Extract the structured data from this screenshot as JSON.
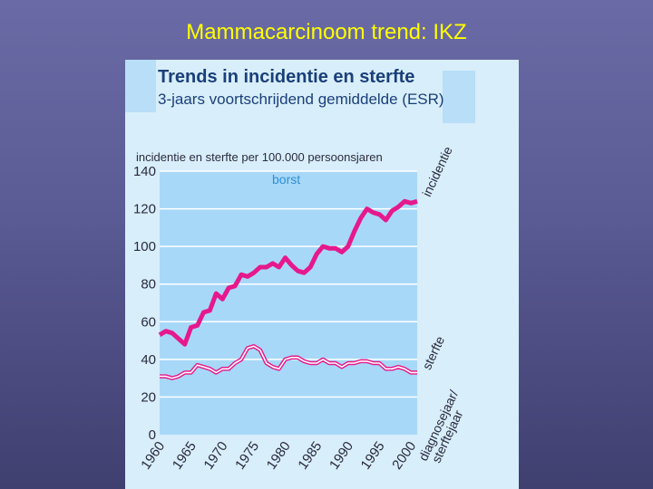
{
  "slide": {
    "title": "Mammacarcinoom trend: IKZ"
  },
  "chart_data": {
    "type": "line",
    "title": "Trends in incidentie en sterfte",
    "subtitle": "3-jaars voortschrijdend gemiddelde (ESR)",
    "ylabel": "incidentie en sterfte  per 100.000 persoonsjaren",
    "xlabel": "diagnosejaar/ sterftejaar",
    "panel_label": "borst",
    "ylim": [
      0,
      140
    ],
    "xlim": [
      1960,
      2001
    ],
    "yticks": [
      0,
      20,
      40,
      60,
      80,
      100,
      120,
      140
    ],
    "xticks": [
      1960,
      1965,
      1970,
      1975,
      1980,
      1985,
      1990,
      1995,
      2000
    ],
    "grid": true,
    "x": [
      1960,
      1961,
      1962,
      1963,
      1964,
      1965,
      1966,
      1967,
      1968,
      1969,
      1970,
      1971,
      1972,
      1973,
      1974,
      1975,
      1976,
      1977,
      1978,
      1979,
      1980,
      1981,
      1982,
      1983,
      1984,
      1985,
      1986,
      1987,
      1988,
      1989,
      1990,
      1991,
      1992,
      1993,
      1994,
      1995,
      1996,
      1997,
      1998,
      1999,
      2000,
      2001
    ],
    "series": [
      {
        "name": "incidentie",
        "color": "#e6198c",
        "style": "thick",
        "values": [
          53,
          55,
          54,
          51,
          48,
          57,
          58,
          65,
          66,
          75,
          72,
          78,
          79,
          85,
          84,
          86,
          89,
          89,
          91,
          89,
          94,
          90,
          87,
          86,
          89,
          96,
          100,
          99,
          99,
          97,
          100,
          108,
          115,
          120,
          118,
          117,
          114,
          119,
          121,
          124,
          123,
          124
        ]
      },
      {
        "name": "sterfte",
        "color": "#e6198c",
        "style": "double",
        "values": [
          31,
          31,
          30,
          31,
          33,
          33,
          37,
          36,
          35,
          33,
          35,
          35,
          38,
          40,
          46,
          47,
          45,
          38,
          36,
          35,
          40,
          41,
          41,
          39,
          38,
          38,
          40,
          38,
          38,
          36,
          38,
          38,
          39,
          39,
          38,
          38,
          35,
          35,
          36,
          35,
          33,
          33
        ]
      }
    ]
  }
}
